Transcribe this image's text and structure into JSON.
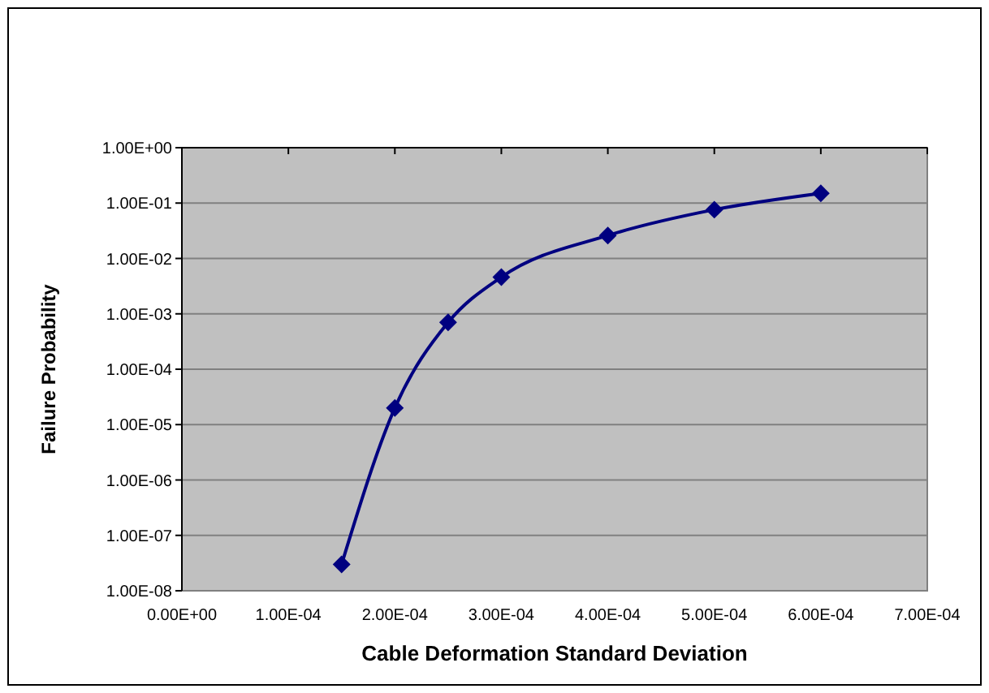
{
  "chart_data": {
    "type": "line",
    "xlabel": "Cable Deformation Standard Deviation",
    "ylabel": "Failure Probability",
    "log": "y",
    "grid": "y",
    "marker": "diamond",
    "line_style": "solid",
    "x": [
      0.00015,
      0.0002,
      0.00025,
      0.0003,
      0.0004,
      0.0005,
      0.0006
    ],
    "series": [
      {
        "color": "#000080",
        "values": [
          3e-08,
          2e-05,
          0.0007,
          0.0046,
          0.026,
          0.076,
          0.15
        ]
      }
    ],
    "xlim": [
      0,
      0.0007
    ],
    "xticks": [
      {
        "value": 0,
        "label": "0.00E+00"
      },
      {
        "value": 0.0001,
        "label": "1.00E-04"
      },
      {
        "value": 0.0002,
        "label": "2.00E-04"
      },
      {
        "value": 0.0003,
        "label": "3.00E-04"
      },
      {
        "value": 0.0004,
        "label": "4.00E-04"
      },
      {
        "value": 0.0005,
        "label": "5.00E-04"
      },
      {
        "value": 0.0006,
        "label": "6.00E-04"
      },
      {
        "value": 0.0007,
        "label": "7.00E-04"
      }
    ],
    "ylim": [
      1e-08,
      1
    ],
    "yticks": [
      {
        "value": 1e-08,
        "label": "1.00E-08"
      },
      {
        "value": 1e-07,
        "label": "1.00E-07"
      },
      {
        "value": 1e-06,
        "label": "1.00E-06"
      },
      {
        "value": 1e-05,
        "label": "1.00E-05"
      },
      {
        "value": 0.0001,
        "label": "1.00E-04"
      },
      {
        "value": 0.001,
        "label": "1.00E-03"
      },
      {
        "value": 0.01,
        "label": "1.00E-02"
      },
      {
        "value": 0.1,
        "label": "1.00E-01"
      },
      {
        "value": 1,
        "label": "1.00E+00"
      }
    ]
  }
}
